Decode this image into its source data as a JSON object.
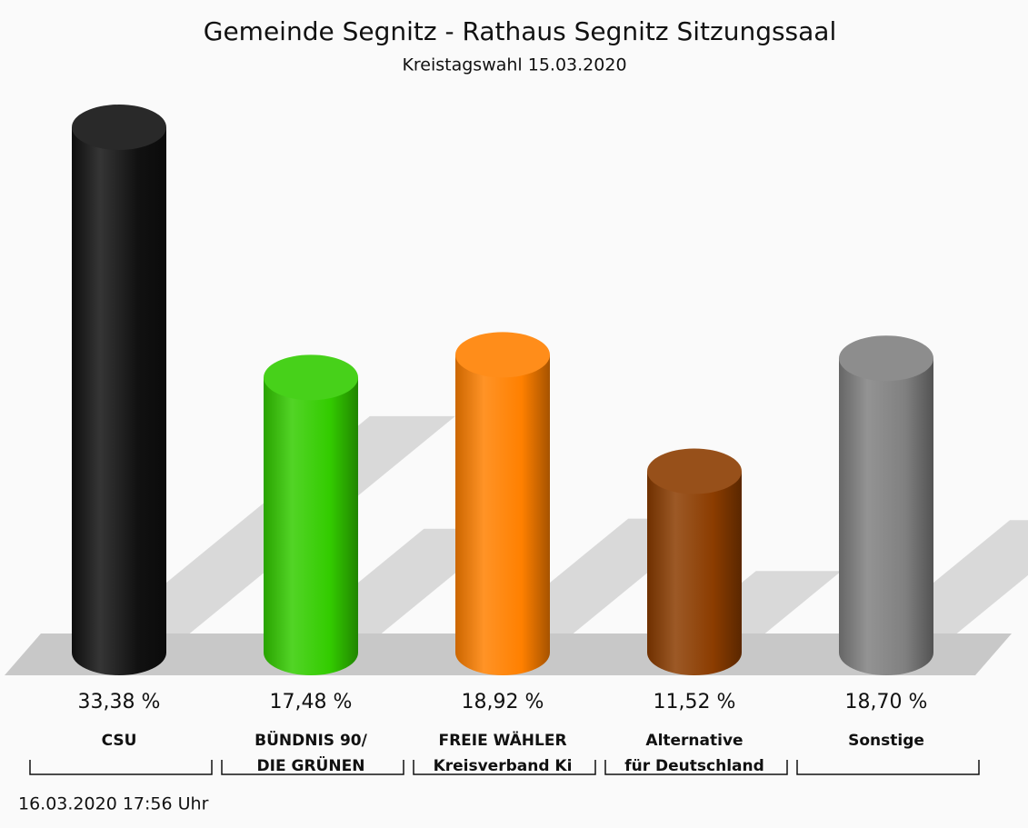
{
  "chart_data": {
    "type": "bar",
    "title": "Gemeinde Segnitz - Rathaus Segnitz Sitzungssaal",
    "subtitle": "Kreistagswahl 15.03.2020",
    "categories": [
      [
        "CSU"
      ],
      [
        "BÜNDNIS 90/",
        "DIE GRÜNEN"
      ],
      [
        "FREIE WÄHLER",
        "Kreisverband Ki"
      ],
      [
        "Alternative",
        "für Deutschland"
      ],
      [
        "Sonstige"
      ]
    ],
    "values": [
      33.38,
      17.48,
      18.92,
      11.52,
      18.7
    ],
    "value_labels": [
      "33,38 %",
      "17,48 %",
      "18,92 %",
      "11,52 %",
      "18,70 %"
    ],
    "colors": [
      "#111111",
      "#33cc00",
      "#ff8000",
      "#8b3c00",
      "#808080"
    ],
    "footer": "16.03.2020 17:56 Uhr"
  }
}
